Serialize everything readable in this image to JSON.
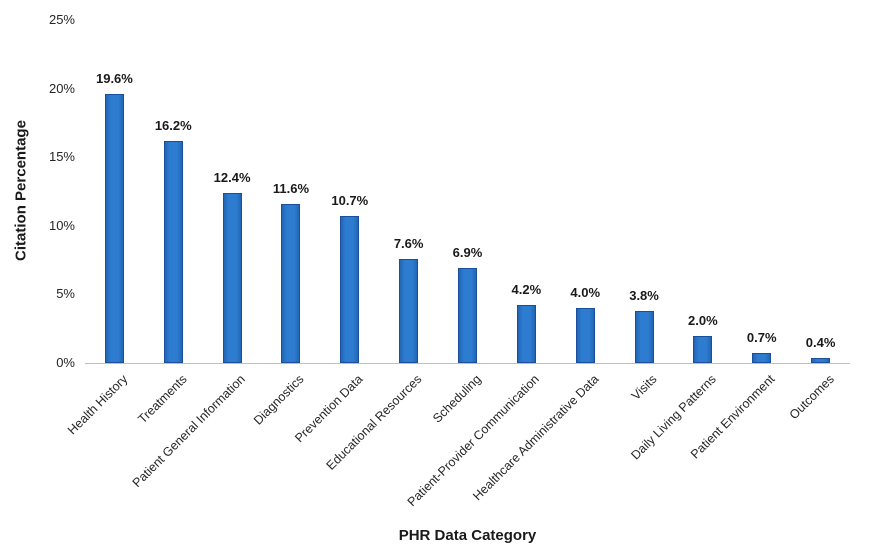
{
  "chart_data": {
    "type": "bar",
    "title": "",
    "xlabel": "PHR Data Category",
    "ylabel": "Citation Percentage",
    "categories": [
      "Health History",
      "Treatments",
      "Patient General Information",
      "Diagnostics",
      "Prevention Data",
      "Educational Resources",
      "Scheduling",
      "Patient-Provider Communication",
      "Healthcare Administrative Data",
      "Visits",
      "Daily Living Patterns",
      "Patient Environment",
      "Outcomes"
    ],
    "values": [
      19.6,
      16.2,
      12.4,
      11.6,
      10.7,
      7.6,
      6.9,
      4.2,
      4.0,
      3.8,
      2.0,
      0.7,
      0.4
    ],
    "data_labels": [
      "19.6%",
      "16.2%",
      "12.4%",
      "11.6%",
      "10.7%",
      "7.6%",
      "6.9%",
      "4.2%",
      "4.0%",
      "3.8%",
      "2.0%",
      "0.7%",
      "0.4%"
    ],
    "y_ticks": [
      {
        "value": 0,
        "label": "0%"
      },
      {
        "value": 5,
        "label": "5%"
      },
      {
        "value": 10,
        "label": "10%"
      },
      {
        "value": 15,
        "label": "15%"
      },
      {
        "value": 20,
        "label": "20%"
      },
      {
        "value": 25,
        "label": "25%"
      }
    ],
    "ylim": [
      0,
      25
    ],
    "grid": false,
    "legend": false,
    "colors": {
      "bar_fill": "#2E7CD0",
      "bar_fill_edge": "#2166B4",
      "bar_border": "#1B4F9E",
      "axis_line": "#BFBFBF",
      "text": "#262626"
    }
  }
}
